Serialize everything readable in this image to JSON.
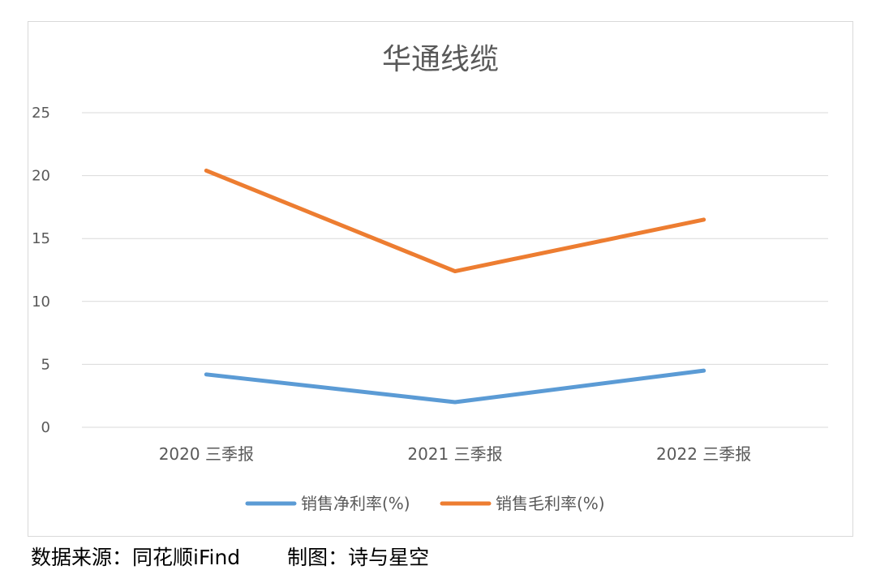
{
  "chart_data": {
    "type": "line",
    "title": "华通线缆",
    "categories": [
      "2020 三季报",
      "2021 三季报",
      "2022 三季报"
    ],
    "series": [
      {
        "name": "销售净利率(%)",
        "color": "#5B9BD5",
        "values": [
          4.2,
          2.0,
          4.5
        ]
      },
      {
        "name": "销售毛利率(%)",
        "color": "#ED7D31",
        "values": [
          20.4,
          12.4,
          16.5
        ]
      }
    ],
    "ylim": [
      0,
      25
    ],
    "yticks": [
      0,
      5,
      10,
      15,
      20,
      25
    ],
    "grid": true,
    "legend": "bottom",
    "xlabel": "",
    "ylabel": ""
  },
  "footer": {
    "source": "数据来源：同花顺iFind",
    "credit": "制图：诗与星空"
  }
}
